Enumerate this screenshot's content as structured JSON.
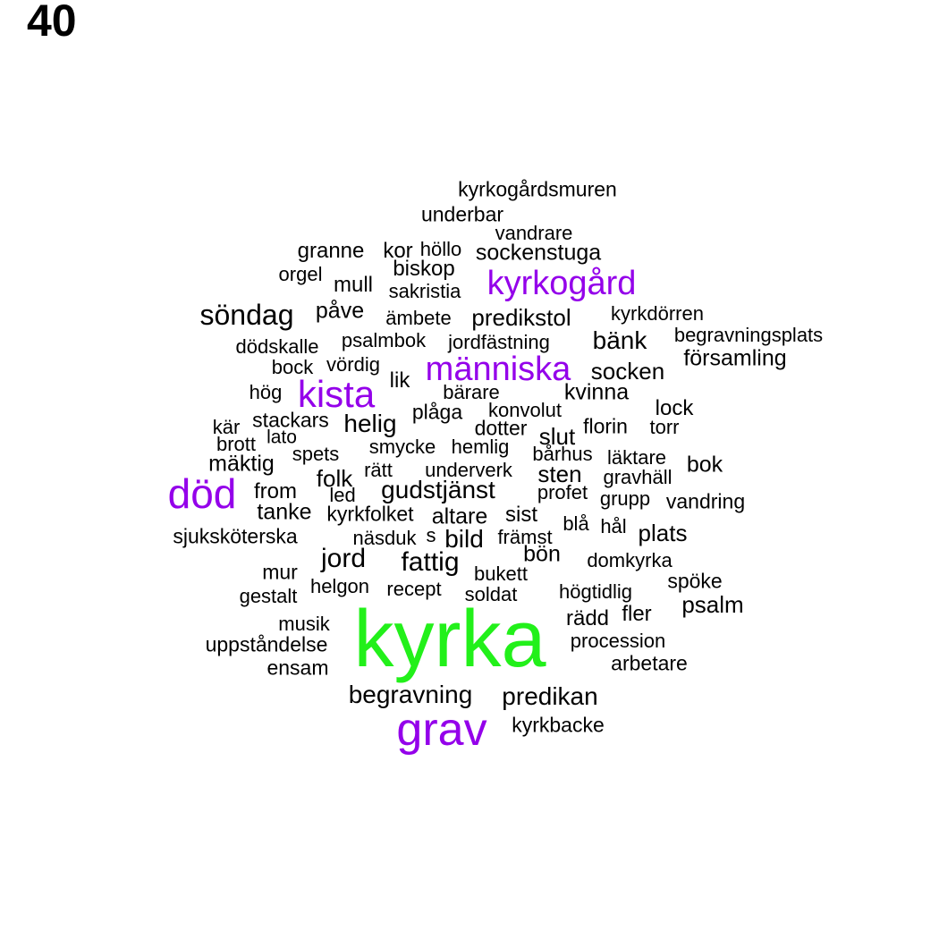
{
  "panel_number": "40",
  "colors": {
    "regular": "#000000",
    "highlight": "#9400ea",
    "top": "#22f01a"
  },
  "words": [
    "kyrka",
    "grav",
    "död",
    "kista",
    "människa",
    "kyrkogård",
    "söndag",
    "begravning",
    "predikan",
    "fattig",
    "gudstjänst",
    "jord",
    "bild",
    "kyrkogårdsmuren",
    "underbar",
    "vandrare",
    "granne",
    "kor",
    "höllo",
    "sockenstuga",
    "orgel",
    "biskop",
    "mull",
    "sakristia",
    "påve",
    "ämbete",
    "predikstol",
    "kyrkdörren",
    "dödskalle",
    "psalmbok",
    "jordfästning",
    "bänk",
    "begravningsplats",
    "bock",
    "vördig",
    "socken",
    "församling",
    "hög",
    "lik",
    "bärare",
    "kvinna",
    "stackars",
    "plåga",
    "konvolut",
    "lock",
    "kär",
    "helig",
    "dotter",
    "florin",
    "torr",
    "lato",
    "slut",
    "brott",
    "smycke",
    "hemlig",
    "bårhus",
    "läktare",
    "spets",
    "mäktig",
    "rätt",
    "underverk",
    "sten",
    "bok",
    "folk",
    "gravhäll",
    "from",
    "led",
    "profet",
    "grupp",
    "vandring",
    "tanke",
    "kyrkfolket",
    "altare",
    "sist",
    "blå",
    "hål",
    "plats",
    "sjuksköterska",
    "näsduk",
    "s",
    "främst",
    "bön",
    "domkyrka",
    "mur",
    "bukett",
    "spöke",
    "helgon",
    "recept",
    "gestalt",
    "soldat",
    "högtidlig",
    "psalm",
    "fler",
    "musik",
    "rädd",
    "procession",
    "uppståndelse",
    "arbetare",
    "ensam",
    "kyrkbacke"
  ]
}
